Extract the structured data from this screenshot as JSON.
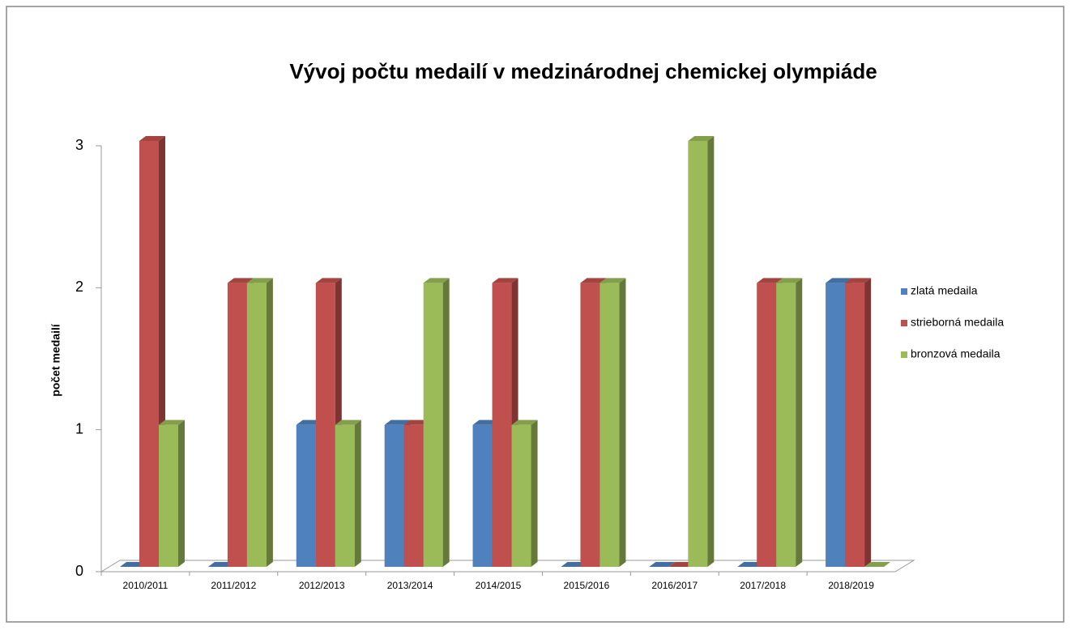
{
  "chart_data": {
    "type": "bar3d",
    "title": "Vývoj počtu medailí v medzinárodnej chemickej olympiáde",
    "y_label": "počet medailí",
    "categories": [
      "2010/2011",
      "2011/2012",
      "2012/2013",
      "2013/2014",
      "2014/2015",
      "2015/2016",
      "2016/2017",
      "2017/2018",
      "2018/2019"
    ],
    "series": [
      {
        "name": "zlatá medaila",
        "color": "#4f81bd",
        "values": [
          0,
          0,
          1,
          1,
          1,
          0,
          0,
          0,
          2
        ]
      },
      {
        "name": "strieborná medaila",
        "color": "#c0504d",
        "values": [
          3,
          2,
          2,
          1,
          2,
          2,
          0,
          2,
          2
        ]
      },
      {
        "name": "bronzová medaila",
        "color": "#9bbb59",
        "values": [
          1,
          2,
          1,
          2,
          1,
          2,
          3,
          2,
          0
        ]
      }
    ],
    "ylim": [
      0,
      3
    ],
    "yticks": [
      0,
      1,
      2,
      3
    ],
    "legend": "right"
  }
}
